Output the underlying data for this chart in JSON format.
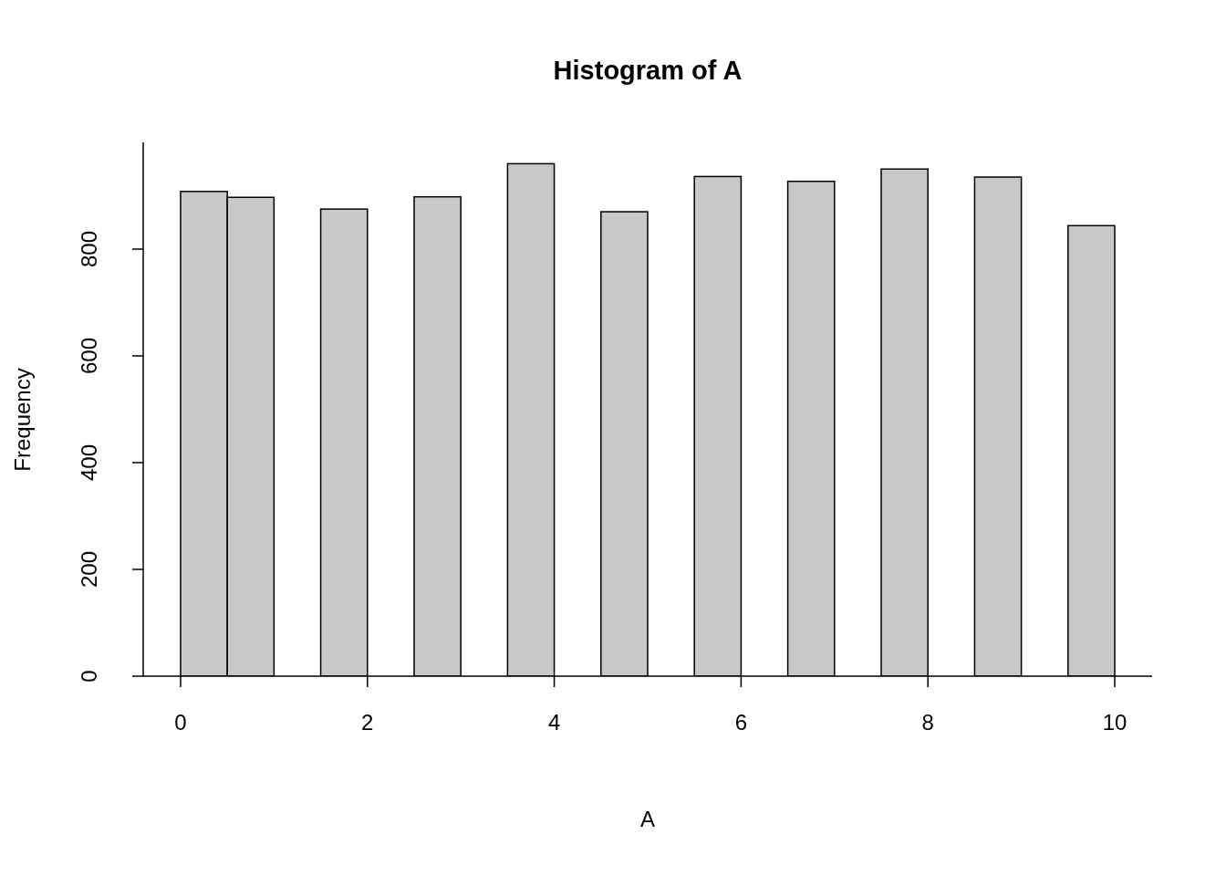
{
  "chart_data": {
    "type": "histogram",
    "title": "Histogram of A",
    "xlabel": "A",
    "ylabel": "Frequency",
    "bins": [
      0,
      0.5,
      1,
      1.5,
      2,
      2.5,
      3,
      3.5,
      4,
      4.5,
      5,
      5.5,
      6,
      6.5,
      7,
      7.5,
      8,
      8.5,
      9,
      9.5,
      10
    ],
    "values": [
      908,
      897,
      0,
      875,
      0,
      898,
      0,
      960,
      0,
      870,
      0,
      936,
      0,
      927,
      0,
      950,
      0,
      935,
      0,
      844
    ],
    "color": "#c8c8c8",
    "xlim": [
      -0.4,
      10.4
    ],
    "xticks": [
      0,
      2,
      4,
      6,
      8,
      10
    ],
    "ylim": [
      0,
      1000
    ],
    "yticks": [
      0,
      200,
      400,
      600,
      800
    ]
  }
}
